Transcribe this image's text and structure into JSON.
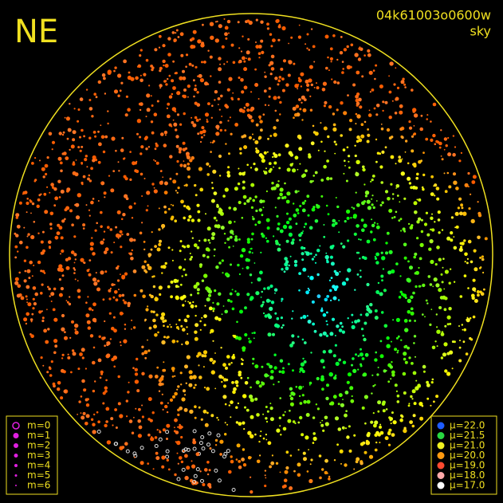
{
  "header": {
    "direction": "NE",
    "image_id": "04k61003o0600w",
    "image_type": "sky"
  },
  "magnitude_legend": [
    "m=0",
    "m=1",
    "m=2",
    "m=3",
    "m=4",
    "m=5",
    "m=6"
  ],
  "brightness_legend": [
    {
      "label": "μ=22.0",
      "color": "#1e5cff"
    },
    {
      "label": "μ=21.5",
      "color": "#28d840"
    },
    {
      "label": "μ=21.0",
      "color": "#f0f020"
    },
    {
      "label": "μ=20.0",
      "color": "#ff9a10"
    },
    {
      "label": "μ=19.0",
      "color": "#ff4a30"
    },
    {
      "label": "μ=18.0",
      "color": "#ffaaaa"
    },
    {
      "label": "μ=17.0",
      "color": "#ffffff"
    }
  ]
}
